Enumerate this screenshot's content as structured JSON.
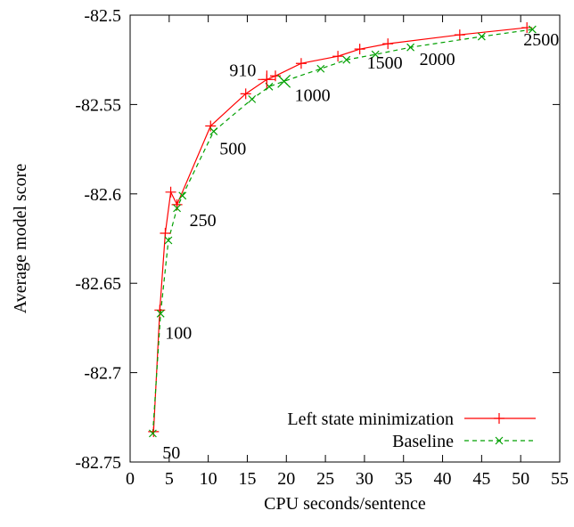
{
  "chart_data": {
    "type": "line",
    "title": "",
    "xlabel": "CPU seconds/sentence",
    "ylabel": "Average model score",
    "xlim": [
      0,
      55
    ],
    "ylim": [
      -82.75,
      -82.5
    ],
    "x_ticks": [
      0,
      5,
      10,
      15,
      20,
      25,
      30,
      35,
      40,
      45,
      50,
      55
    ],
    "y_ticks": [
      -82.75,
      -82.7,
      -82.65,
      -82.6,
      -82.55,
      -82.5
    ],
    "x_tick_labels": [
      "0",
      "5",
      "10",
      "15",
      "20",
      "25",
      "30",
      "35",
      "40",
      "45",
      "50",
      "55"
    ],
    "y_tick_labels": [
      "-82.75",
      "-82.7",
      "-82.65",
      "-82.6",
      "-82.55",
      "-82.5"
    ],
    "grid": false,
    "legend_position": "bottom-right",
    "series": [
      {
        "name": "Left state minimization",
        "color": "#ff0000",
        "line_style": "solid",
        "marker": "plus",
        "x": [
          3.0,
          3.8,
          4.5,
          5.2,
          6.0,
          10.3,
          14.8,
          17.5,
          18.6,
          21.9,
          26.6,
          29.4,
          33.0,
          42.2,
          50.8
        ],
        "y": [
          -82.733,
          -82.665,
          -82.622,
          -82.599,
          -82.606,
          -82.562,
          -82.544,
          -82.536,
          -82.534,
          -82.527,
          -82.523,
          -82.519,
          -82.516,
          -82.511,
          -82.507
        ]
      },
      {
        "name": "Baseline",
        "color": "#00a000",
        "line_style": "dashed",
        "marker": "x",
        "x": [
          2.9,
          3.9,
          4.9,
          6.0,
          6.7,
          10.7,
          15.6,
          17.8,
          19.7,
          24.4,
          27.7,
          31.4,
          35.9,
          45.0,
          51.5
        ],
        "y": [
          -82.734,
          -82.667,
          -82.626,
          -82.608,
          -82.601,
          -82.565,
          -82.547,
          -82.54,
          -82.537,
          -82.53,
          -82.525,
          -82.522,
          -82.518,
          -82.512,
          -82.508
        ]
      }
    ],
    "annotations": [
      {
        "text": "50",
        "x": 3.0,
        "y": -82.733
      },
      {
        "text": "100",
        "x": 3.8,
        "y": -82.665
      },
      {
        "text": "250",
        "x": 6.0,
        "y": -82.606
      },
      {
        "text": "500",
        "x": 10.3,
        "y": -82.562
      },
      {
        "text": "910",
        "x": 17.5,
        "y": -82.536
      },
      {
        "text": "1000",
        "x": 19.7,
        "y": -82.537
      },
      {
        "text": "1500",
        "x": 29.4,
        "y": -82.519
      },
      {
        "text": "2000",
        "x": 35.9,
        "y": -82.518
      },
      {
        "text": "2500",
        "x": 50.8,
        "y": -82.507
      }
    ]
  }
}
